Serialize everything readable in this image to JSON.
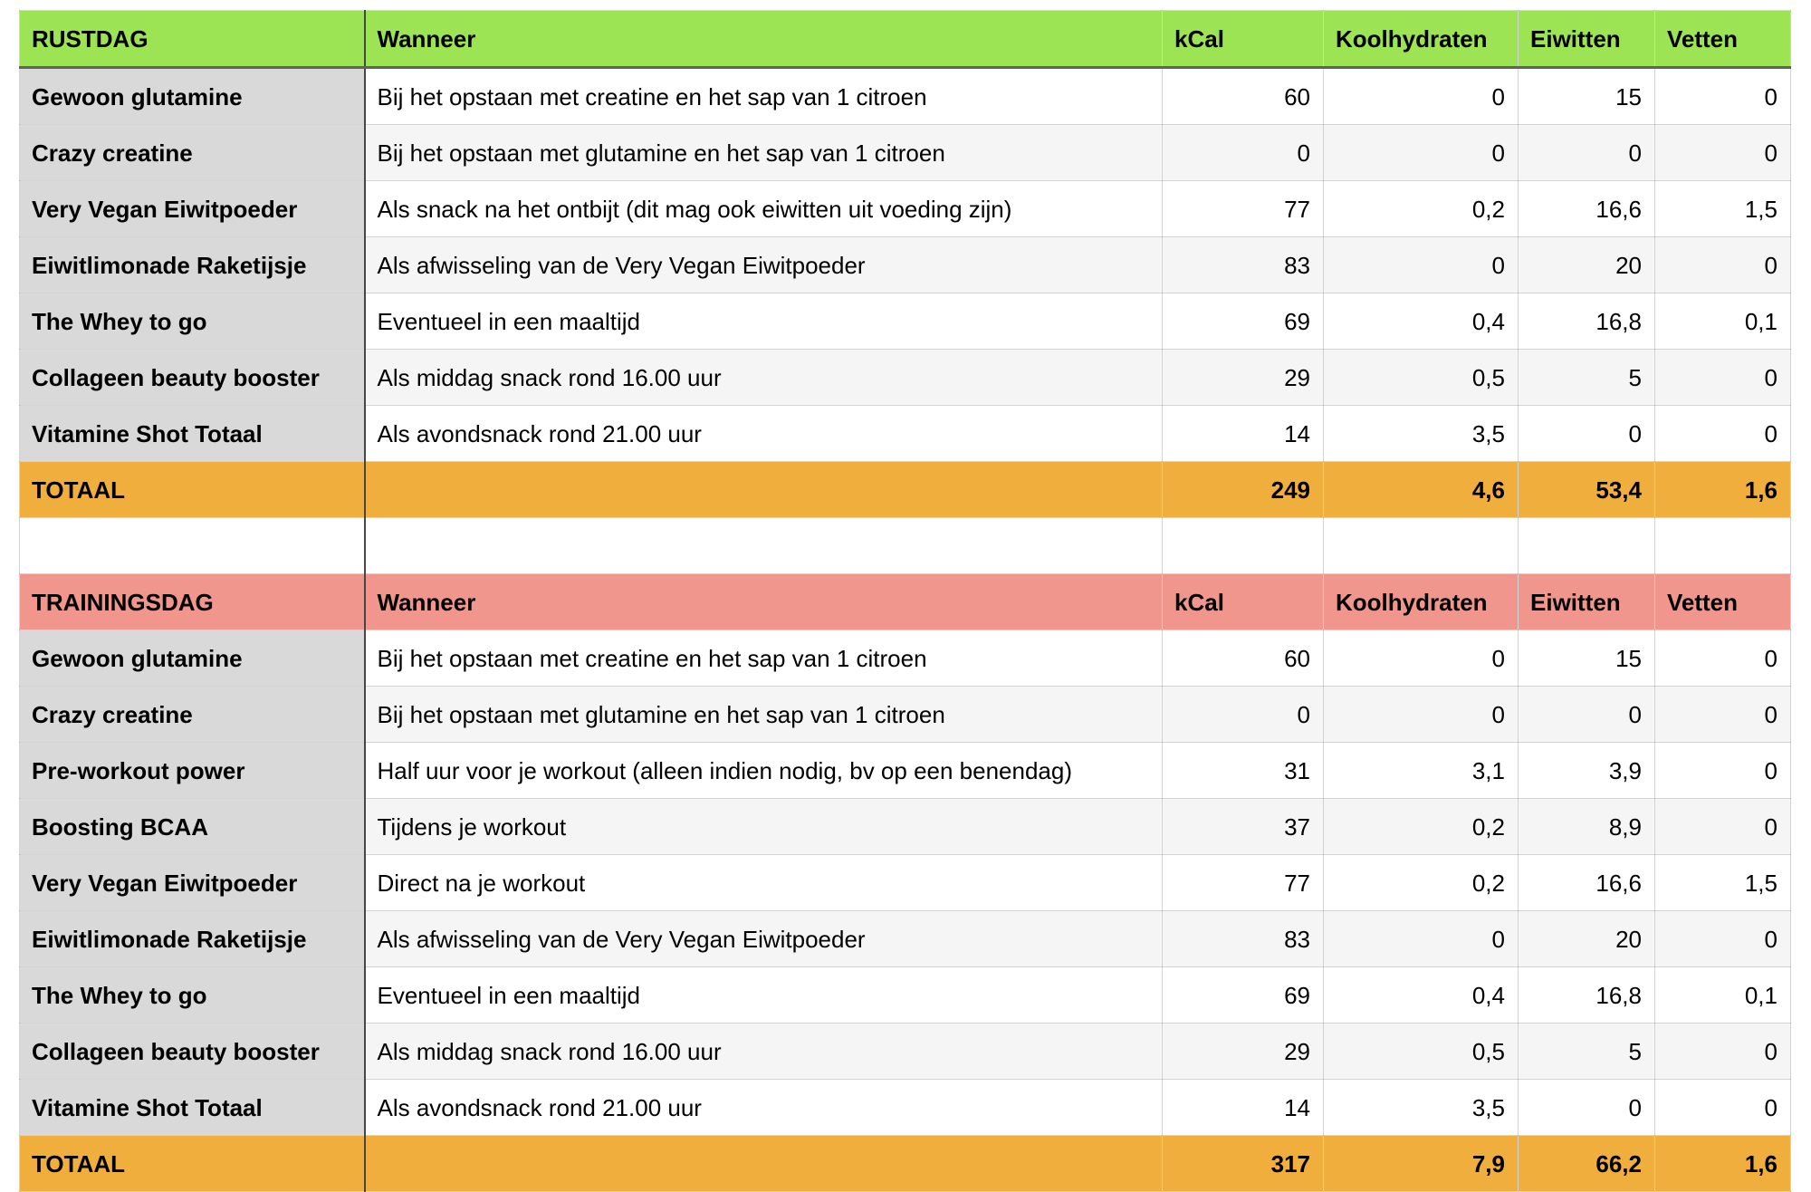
{
  "colors": {
    "rustdag_header": "#9de455",
    "trainingsdag_header": "#f0968c",
    "total_row": "#f0ae3c",
    "label_column": "#d9d9d9",
    "row_stripe": "#f5f5f5",
    "row_plain": "#ffffff"
  },
  "column_headers": [
    "Wanneer",
    "kCal",
    "Koolhydraten",
    "Eiwitten",
    "Vetten"
  ],
  "sections": [
    {
      "id": "rustdag",
      "title": "RUSTDAG",
      "header": [
        "RUSTDAG",
        "Wanneer",
        "kCal",
        "Koolhydraten",
        "Eiwitten",
        "Vetten"
      ],
      "rows": [
        [
          "Gewoon glutamine",
          "Bij het opstaan met creatine en het sap van 1 citroen",
          "60",
          "0",
          "15",
          "0"
        ],
        [
          "Crazy creatine",
          "Bij het opstaan met glutamine en het sap van 1 citroen",
          "0",
          "0",
          "0",
          "0"
        ],
        [
          "Very Vegan Eiwitpoeder",
          "Als snack na het ontbijt (dit mag ook eiwitten uit voeding zijn)",
          "77",
          "0,2",
          "16,6",
          "1,5"
        ],
        [
          "Eiwitlimonade Raketijsje",
          "Als afwisseling van de Very Vegan Eiwitpoeder",
          "83",
          "0",
          "20",
          "0"
        ],
        [
          "The Whey to go",
          "Eventueel in een maaltijd",
          "69",
          "0,4",
          "16,8",
          "0,1"
        ],
        [
          "Collageen beauty booster",
          "Als middag snack rond 16.00 uur",
          "29",
          "0,5",
          "5",
          "0"
        ],
        [
          "Vitamine Shot Totaal",
          "Als avondsnack rond 21.00 uur",
          "14",
          "3,5",
          "0",
          "0"
        ]
      ],
      "total": [
        "TOTAAL",
        "",
        "249",
        "4,6",
        "53,4",
        "1,6"
      ]
    },
    {
      "id": "trainingsdag",
      "title": "TRAININGSDAG",
      "header": [
        "TRAININGSDAG",
        "Wanneer",
        "kCal",
        "Koolhydraten",
        "Eiwitten",
        "Vetten"
      ],
      "rows": [
        [
          "Gewoon glutamine",
          "Bij het opstaan met creatine en het sap van 1 citroen",
          "60",
          "0",
          "15",
          "0"
        ],
        [
          "Crazy creatine",
          "Bij het opstaan met glutamine en het sap van 1 citroen",
          "0",
          "0",
          "0",
          "0"
        ],
        [
          "Pre-workout power",
          "Half uur voor je workout (alleen indien nodig, bv op een benendag)",
          "31",
          "3,1",
          "3,9",
          "0"
        ],
        [
          "Boosting BCAA",
          "Tijdens je workout",
          "37",
          "0,2",
          "8,9",
          "0"
        ],
        [
          "Very Vegan Eiwitpoeder",
          "Direct na je workout",
          "77",
          "0,2",
          "16,6",
          "1,5"
        ],
        [
          "Eiwitlimonade Raketijsje",
          "Als afwisseling van de Very Vegan Eiwitpoeder",
          "83",
          "0",
          "20",
          "0"
        ],
        [
          "The Whey to go",
          "Eventueel in een maaltijd",
          "69",
          "0,4",
          "16,8",
          "0,1"
        ],
        [
          "Collageen beauty booster",
          "Als middag snack rond 16.00 uur",
          "29",
          "0,5",
          "5",
          "0"
        ],
        [
          "Vitamine Shot Totaal",
          "Als avondsnack rond 21.00 uur",
          "14",
          "3,5",
          "0",
          "0"
        ]
      ],
      "total": [
        "TOTAAL",
        "",
        "317",
        "7,9",
        "66,2",
        "1,6"
      ]
    }
  ]
}
